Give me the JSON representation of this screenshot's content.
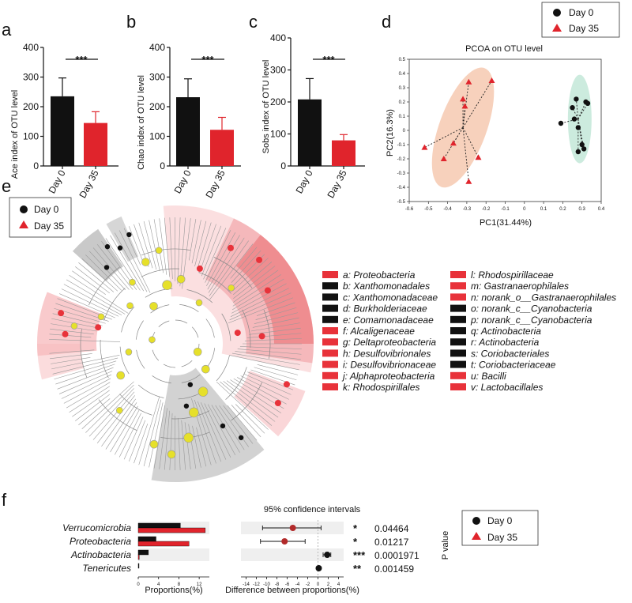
{
  "colors": {
    "day0": "#111111",
    "day35": "#e0242c",
    "pink_ellipse": "#f4c1a6",
    "green_ellipse": "#bfe6d6",
    "node": "#e6e02a",
    "clade_red": "#e8323a",
    "clade_gray": "#8a8a8a"
  },
  "legend": {
    "day0": "Day 0",
    "day35": "Day 35"
  },
  "chart_data": [
    {
      "id": "a",
      "panel_label": "a",
      "type": "bar",
      "ylabel": "Ace index of OTU level",
      "categories": [
        "Day 0",
        "Day 35"
      ],
      "values": [
        235,
        145
      ],
      "errors": [
        62,
        38
      ],
      "ylim": [
        0,
        400
      ],
      "yticks": [
        "0",
        "100",
        "200",
        "300",
        "400"
      ],
      "significance": "***"
    },
    {
      "id": "b",
      "panel_label": "b",
      "type": "bar",
      "ylabel": "Chao index of OTU level",
      "categories": [
        "Day 0",
        "Day 35"
      ],
      "values": [
        232,
        122
      ],
      "errors": [
        62,
        42
      ],
      "ylim": [
        0,
        400
      ],
      "yticks": [
        "0",
        "100",
        "200",
        "300",
        "400"
      ],
      "significance": "***"
    },
    {
      "id": "c",
      "panel_label": "c",
      "type": "bar",
      "ylabel": "Sobs index of OTU level",
      "categories": [
        "Day 0",
        "Day 35"
      ],
      "values": [
        208,
        80
      ],
      "errors": [
        65,
        18
      ],
      "ylim": [
        0,
        400
      ],
      "yticks": [
        "0",
        "100",
        "200",
        "300",
        "400"
      ],
      "significance": "***"
    },
    {
      "id": "d",
      "panel_label": "d",
      "type": "scatter",
      "title": "PCOA on OTU level",
      "xlabel": "PC1(31.44%)",
      "ylabel": "PC2(16.3%)",
      "xlim": [
        -0.6,
        0.4
      ],
      "ylim": [
        -0.5,
        0.5
      ],
      "xticks": [
        "-0.6",
        "-0.5",
        "-0.4",
        "-0.3",
        "-0.2",
        "-0.1",
        "0",
        "0.1",
        "0.2",
        "0.3",
        "0.4"
      ],
      "yticks": [
        "-0.5",
        "-0.4",
        "-0.3",
        "-0.2",
        "-0.1",
        "0",
        "0.1",
        "0.2",
        "0.3",
        "0.4",
        "0.5"
      ],
      "series": [
        {
          "name": "Day 0",
          "centroid": [
            0.28,
            0.08
          ],
          "points": [
            [
              0.27,
              0.22
            ],
            [
              0.32,
              0.2
            ],
            [
              0.33,
              0.19
            ],
            [
              0.25,
              0.16
            ],
            [
              0.19,
              0.05
            ],
            [
              0.26,
              0.08
            ],
            [
              0.28,
              0.02
            ],
            [
              0.3,
              -0.1
            ],
            [
              0.31,
              -0.13
            ],
            [
              0.28,
              -0.15
            ]
          ]
        },
        {
          "name": "Day 35",
          "centroid": [
            -0.32,
            0.02
          ],
          "points": [
            [
              -0.29,
              0.34
            ],
            [
              -0.17,
              0.35
            ],
            [
              -0.31,
              0.17
            ],
            [
              -0.32,
              0.22
            ],
            [
              -0.52,
              -0.12
            ],
            [
              -0.37,
              -0.09
            ],
            [
              -0.42,
              -0.2
            ],
            [
              -0.24,
              -0.19
            ],
            [
              -0.29,
              -0.36
            ]
          ]
        }
      ]
    },
    {
      "id": "f",
      "panel_label": "f",
      "type": "bar",
      "xlabel": "Proportions(%)",
      "ci_title": "95% confidence intervals",
      "ci_xlabel": "Difference between proportions(%)",
      "pvalue_label": "P value",
      "xticks": [
        "0",
        "4",
        "8",
        "12"
      ],
      "ci_ticks": [
        "-14",
        "-12",
        "-10",
        "-8",
        "-6",
        "-4",
        "-2",
        "0",
        "2",
        "4"
      ],
      "categories": [
        "Verrucomicrobia",
        "Proteobacteria",
        "Actinobacteria",
        "Tenericutes"
      ],
      "series": [
        {
          "name": "Day 0",
          "values": [
            8.3,
            3.5,
            2.0,
            0.15
          ]
        },
        {
          "name": "Day 35",
          "values": [
            13.2,
            10.0,
            0.2,
            0.0
          ]
        }
      ],
      "difference": [
        -4.9,
        -6.5,
        1.8,
        0.15
      ],
      "ci_low": [
        -10.8,
        -11.2,
        1.0,
        0.05
      ],
      "ci_high": [
        0.6,
        -2.5,
        2.5,
        0.25
      ],
      "significance": [
        "*",
        "*",
        "***",
        "**"
      ],
      "pvalues": [
        "0.04464",
        "0.01217",
        "0.0001971",
        "0.001459"
      ]
    }
  ],
  "cladogram": {
    "panel_label": "e",
    "col1": [
      {
        "text": "a: Proteobacteria",
        "color": "#e8323a"
      },
      {
        "text": "b: Xanthomonadales",
        "color": "#111111"
      },
      {
        "text": "c: Xanthomonadaceae",
        "color": "#111111"
      },
      {
        "text": "d: Burkholderiaceae",
        "color": "#111111"
      },
      {
        "text": "e: Comamonadaceae",
        "color": "#111111"
      },
      {
        "text": "f: Alcaligenaceae",
        "color": "#e8323a"
      },
      {
        "text": "g: Deltaproteobacteria",
        "color": "#e8323a"
      },
      {
        "text": "h: Desulfovibrionales",
        "color": "#e8323a"
      },
      {
        "text": "i: Desulfovibrionaceae",
        "color": "#e8323a"
      },
      {
        "text": "j: Alphaproteobacteria",
        "color": "#e8323a"
      },
      {
        "text": "k: Rhodospirillales",
        "color": "#e8323a"
      }
    ],
    "col2": [
      {
        "text": "l: Rhodospirillaceae",
        "color": "#e8323a"
      },
      {
        "text": "m: Gastranaerophilales",
        "color": "#e8323a"
      },
      {
        "text": "n: norank_o__Gastranaerophilales",
        "color": "#e8323a"
      },
      {
        "text": "o: norank_c__Cyanobacteria",
        "color": "#111111"
      },
      {
        "text": "p: norank_c__Cyanobacteria",
        "color": "#111111"
      },
      {
        "text": "q: Actinobacteria",
        "color": "#111111"
      },
      {
        "text": "r: Actinobacteria",
        "color": "#111111"
      },
      {
        "text": "s: Coriobacteriales",
        "color": "#111111"
      },
      {
        "text": "t: Coriobacteriaceae",
        "color": "#111111"
      },
      {
        "text": "u: Bacilli",
        "color": "#e8323a"
      },
      {
        "text": "v: Lactobacillales",
        "color": "#e8323a"
      }
    ]
  }
}
